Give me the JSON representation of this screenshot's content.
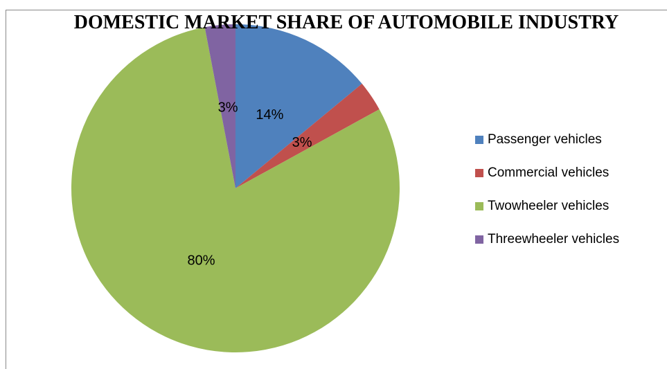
{
  "chart_data": {
    "type": "pie",
    "title": "DOMESTIC MARKET SHARE OF AUTOMOBILE INDUSTRY",
    "categories": [
      "Passenger vehicles",
      "Commercial vehicles",
      "Twowheeler vehicles",
      "Threewheeler vehicles"
    ],
    "values": [
      14,
      3,
      80,
      3
    ],
    "value_labels": [
      "14%",
      "3%",
      "80%",
      "3%"
    ],
    "colors": [
      "#4f81bd",
      "#c0504d",
      "#9bbb59",
      "#8064a2"
    ],
    "legend": "right"
  }
}
